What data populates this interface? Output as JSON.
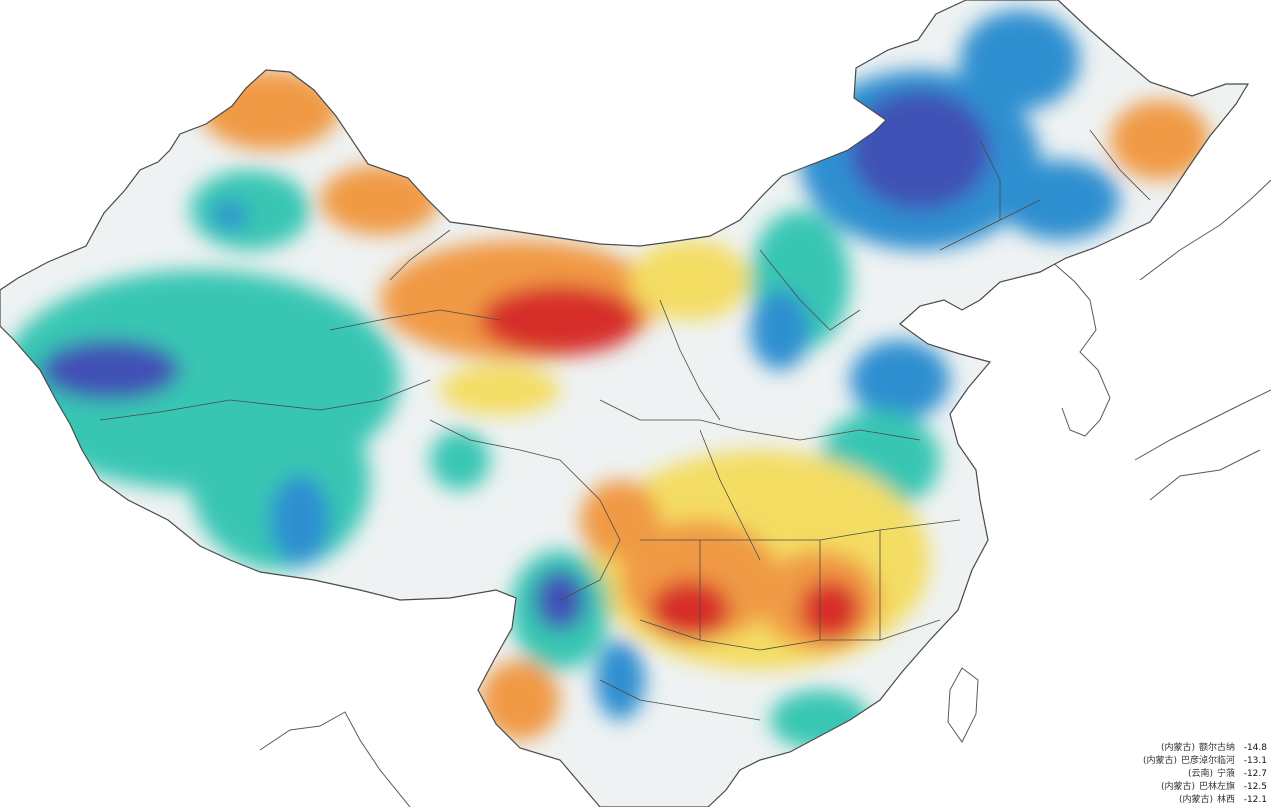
{
  "map": {
    "colors": {
      "ocean": "#ffffff",
      "outline": "#5a5a5a",
      "very_negative": "#3f51b5",
      "negative": "#2f8fd0",
      "slightly_negative": "#39c6b3",
      "neutral": "#eef2f2",
      "slightly_positive": "#f4dd63",
      "positive": "#f09a45",
      "very_positive": "#d72f2a"
    }
  },
  "legend": {
    "rows": [
      {
        "province": "(内蒙古)",
        "station": "额尔古纳",
        "value": "-14.8"
      },
      {
        "province": "(内蒙古)",
        "station": "巴彦淖尔临河",
        "value": "-13.1"
      },
      {
        "province": "(云南)",
        "station": "宁蒗",
        "value": "-12.7"
      },
      {
        "province": "(内蒙古)",
        "station": "巴林左旗",
        "value": "-12.5"
      },
      {
        "province": "(内蒙古)",
        "station": "林西",
        "value": "-12.1"
      }
    ]
  }
}
